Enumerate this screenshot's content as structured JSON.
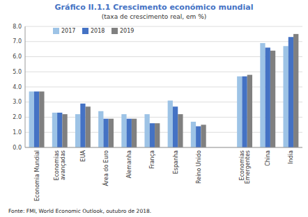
{
  "chart_data": {
    "type": "bar",
    "title": "Gráfico II.1.1 Crescimento económico mundial",
    "subtitle": "(taxa de crescimento real, em %)",
    "footnote": "Fonte: FMI, World Economic Outlook, outubro de 2018.",
    "categories": [
      "Economia Mundial",
      "Economias\navançadas",
      "EUA",
      "Área do Euro",
      "Alemanha",
      "França",
      "Espanha",
      "Reino Unido",
      null,
      "Economias\nEmergentes",
      "China",
      "India"
    ],
    "series": [
      {
        "name": "2017",
        "color": "#9DC3E6",
        "values": [
          3.7,
          2.3,
          2.2,
          2.4,
          2.2,
          2.2,
          3.1,
          1.7,
          0,
          4.7,
          6.9,
          6.7
        ]
      },
      {
        "name": "2018",
        "color": "#4472C4",
        "values": [
          3.7,
          2.3,
          2.9,
          1.9,
          1.9,
          1.6,
          2.7,
          1.4,
          0,
          4.7,
          6.6,
          7.3
        ]
      },
      {
        "name": "2019",
        "color": "#808080",
        "values": [
          3.7,
          2.2,
          2.7,
          1.9,
          1.9,
          1.6,
          2.2,
          1.5,
          0,
          4.8,
          6.4,
          7.5
        ]
      }
    ],
    "ylim": [
      0,
      8.0
    ],
    "yticks": [
      {
        "value": 0.0,
        "label": "0.0"
      },
      {
        "value": 1.0,
        "label": "1.0"
      },
      {
        "value": 2.0,
        "label": "2.0"
      },
      {
        "value": 3.0,
        "label": "3.0"
      },
      {
        "value": 4.0,
        "label": "4.0"
      },
      {
        "value": 5.0,
        "label": "5.0"
      },
      {
        "value": 6.0,
        "label": "6.0"
      },
      {
        "value": 7.0,
        "label": "7.0"
      },
      {
        "value": 8.0,
        "label": "8.0"
      }
    ],
    "grid": true,
    "legend": "top-left"
  }
}
